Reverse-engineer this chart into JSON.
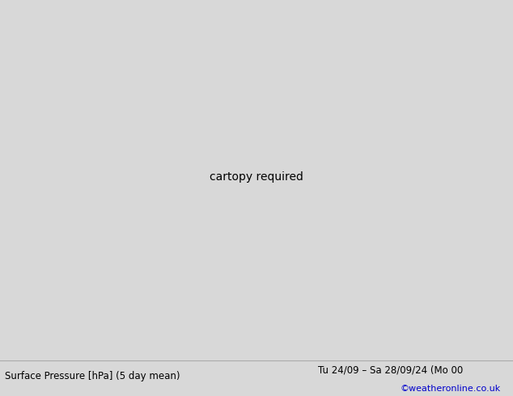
{
  "title_left": "Surface Pressure [hPa] (5 day mean)",
  "title_right": "Tu 24/09 – Sa 28/09/24 (Mo 00",
  "credit": "©weatheronline.co.uk",
  "background_sea": "#d8d8d8",
  "background_land": "#c8f0a0",
  "land_edge": "#888888",
  "contour_blue": "#0055ff",
  "contour_black": "#000000",
  "lon_min": -18,
  "lon_max": 22,
  "lat_min": 43,
  "lat_max": 64,
  "fig_width": 6.34,
  "fig_height": 4.9,
  "dpi": 100
}
